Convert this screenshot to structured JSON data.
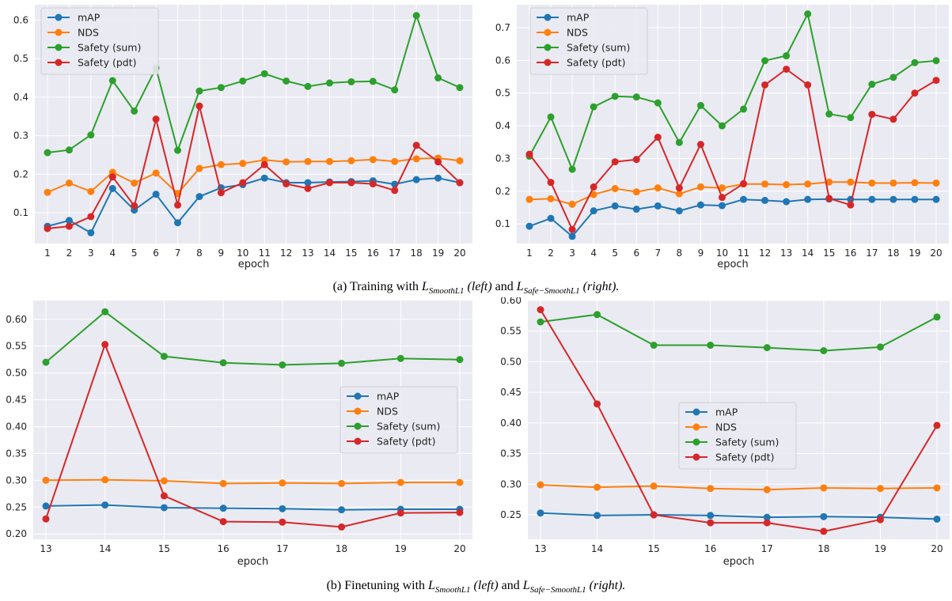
{
  "colors": {
    "mAP": "#1f77b4",
    "NDS": "#ff7f0e",
    "Safety (sum)": "#2ca02c",
    "Safety (pdt)": "#d62728",
    "plot_bg": "#eaeaf2"
  },
  "captions": {
    "a": {
      "prefix": "(a) Training with",
      "loss1_main": "L",
      "loss1_sub": "SmoothL1",
      "middle": "(left)",
      "and": "and",
      "loss2_main": "L",
      "loss2_sub": "Safe−SmoothL1",
      "suffix": "(right)."
    },
    "b": {
      "prefix": "(b) Finetuning with",
      "loss1_main": "L",
      "loss1_sub": "SmoothL1",
      "middle": "(left)",
      "and": "and",
      "loss2_main": "L",
      "loss2_sub": "Safe−SmoothL1",
      "suffix": "(right)."
    }
  },
  "chart_data": [
    {
      "type": "line",
      "xlabel": "epoch",
      "x": [
        1,
        2,
        3,
        4,
        5,
        6,
        7,
        8,
        9,
        10,
        11,
        12,
        13,
        14,
        15,
        16,
        17,
        18,
        19,
        20
      ],
      "ylim": [
        0.02,
        0.64
      ],
      "yticks": [
        0.1,
        0.2,
        0.3,
        0.4,
        0.5,
        0.6
      ],
      "ytick_labels": [
        "0.1",
        "0.2",
        "0.3",
        "0.4",
        "0.5",
        "0.6"
      ],
      "grid": true,
      "legend_position": "top-left",
      "series": [
        {
          "name": "mAP",
          "values": [
            0.065,
            0.08,
            0.048,
            0.163,
            0.107,
            0.148,
            0.074,
            0.142,
            0.165,
            0.173,
            0.19,
            0.178,
            0.178,
            0.18,
            0.181,
            0.183,
            0.174,
            0.186,
            0.19,
            0.178
          ]
        },
        {
          "name": "NDS",
          "values": [
            0.153,
            0.177,
            0.155,
            0.205,
            0.177,
            0.203,
            0.15,
            0.215,
            0.225,
            0.228,
            0.237,
            0.232,
            0.233,
            0.233,
            0.235,
            0.238,
            0.233,
            0.24,
            0.242,
            0.235
          ]
        },
        {
          "name": "Safety (sum)",
          "values": [
            0.256,
            0.263,
            0.302,
            0.443,
            0.364,
            0.476,
            0.262,
            0.416,
            0.425,
            0.442,
            0.461,
            0.442,
            0.428,
            0.437,
            0.44,
            0.441,
            0.419,
            0.612,
            0.45,
            0.425
          ]
        },
        {
          "name": "Safety (pdt)",
          "values": [
            0.059,
            0.065,
            0.09,
            0.193,
            0.118,
            0.343,
            0.12,
            0.377,
            0.152,
            0.178,
            0.225,
            0.175,
            0.163,
            0.178,
            0.178,
            0.175,
            0.158,
            0.275,
            0.232,
            0.178
          ]
        }
      ]
    },
    {
      "type": "line",
      "xlabel": "epoch",
      "x": [
        1,
        2,
        3,
        4,
        5,
        6,
        7,
        8,
        9,
        10,
        11,
        12,
        13,
        14,
        15,
        16,
        17,
        18,
        19,
        20
      ],
      "ylim": [
        0.04,
        0.77
      ],
      "yticks": [
        0.1,
        0.2,
        0.3,
        0.4,
        0.5,
        0.6,
        0.7
      ],
      "ytick_labels": [
        "0.1",
        "0.2",
        "0.3",
        "0.4",
        "0.5",
        "0.6",
        "0.7"
      ],
      "grid": true,
      "legend_position": "top-left",
      "series": [
        {
          "name": "mAP",
          "values": [
            0.093,
            0.117,
            0.062,
            0.14,
            0.155,
            0.145,
            0.155,
            0.14,
            0.158,
            0.156,
            0.175,
            0.172,
            0.168,
            0.175,
            0.176,
            0.175,
            0.175,
            0.175,
            0.175,
            0.175
          ]
        },
        {
          "name": "NDS",
          "values": [
            0.175,
            0.177,
            0.16,
            0.19,
            0.208,
            0.198,
            0.21,
            0.192,
            0.213,
            0.21,
            0.222,
            0.222,
            0.22,
            0.222,
            0.228,
            0.228,
            0.225,
            0.225,
            0.226,
            0.225
          ]
        },
        {
          "name": "Safety (sum)",
          "values": [
            0.307,
            0.427,
            0.267,
            0.458,
            0.49,
            0.488,
            0.47,
            0.349,
            0.462,
            0.4,
            0.451,
            0.599,
            0.614,
            0.742,
            0.436,
            0.425,
            0.527,
            0.548,
            0.593,
            0.599
          ]
        },
        {
          "name": "Safety (pdt)",
          "values": [
            0.313,
            0.227,
            0.083,
            0.213,
            0.29,
            0.297,
            0.365,
            0.21,
            0.343,
            0.181,
            0.223,
            0.525,
            0.573,
            0.525,
            0.178,
            0.158,
            0.435,
            0.42,
            0.5,
            0.539
          ]
        }
      ]
    },
    {
      "type": "line",
      "xlabel": "epoch",
      "x": [
        13,
        14,
        15,
        16,
        17,
        18,
        19,
        20
      ],
      "ylim": [
        0.19,
        0.635
      ],
      "yticks": [
        0.2,
        0.25,
        0.3,
        0.35,
        0.4,
        0.45,
        0.5,
        0.55,
        0.6
      ],
      "ytick_labels": [
        "0.20",
        "0.25",
        "0.30",
        "0.35",
        "0.40",
        "0.45",
        "0.50",
        "0.55",
        "0.60"
      ],
      "grid": true,
      "legend_position": "center-right",
      "series": [
        {
          "name": "mAP",
          "values": [
            0.252,
            0.254,
            0.249,
            0.248,
            0.247,
            0.245,
            0.246,
            0.246
          ]
        },
        {
          "name": "NDS",
          "values": [
            0.3,
            0.301,
            0.299,
            0.294,
            0.295,
            0.294,
            0.296,
            0.296
          ]
        },
        {
          "name": "Safety (sum)",
          "values": [
            0.52,
            0.614,
            0.531,
            0.519,
            0.515,
            0.518,
            0.527,
            0.525
          ]
        },
        {
          "name": "Safety (pdt)",
          "values": [
            0.228,
            0.553,
            0.271,
            0.223,
            0.222,
            0.213,
            0.239,
            0.24
          ]
        }
      ]
    },
    {
      "type": "line",
      "xlabel": "epoch",
      "x": [
        13,
        14,
        15,
        16,
        17,
        18,
        19,
        20
      ],
      "ylim": [
        0.21,
        0.6
      ],
      "yticks": [
        0.25,
        0.3,
        0.35,
        0.4,
        0.45,
        0.5,
        0.55,
        0.6
      ],
      "ytick_labels": [
        "0.25",
        "0.30",
        "0.35",
        "0.40",
        "0.45",
        "0.50",
        "0.55",
        "0.60"
      ],
      "grid": true,
      "legend_position": "center",
      "series": [
        {
          "name": "mAP",
          "values": [
            0.253,
            0.249,
            0.25,
            0.249,
            0.246,
            0.247,
            0.246,
            0.243
          ]
        },
        {
          "name": "NDS",
          "values": [
            0.299,
            0.295,
            0.297,
            0.293,
            0.291,
            0.294,
            0.293,
            0.294
          ]
        },
        {
          "name": "Safety (sum)",
          "values": [
            0.565,
            0.577,
            0.527,
            0.527,
            0.523,
            0.518,
            0.524,
            0.573
          ]
        },
        {
          "name": "Safety (pdt)",
          "values": [
            0.585,
            0.431,
            0.25,
            0.237,
            0.237,
            0.223,
            0.242,
            0.396
          ]
        }
      ]
    }
  ]
}
